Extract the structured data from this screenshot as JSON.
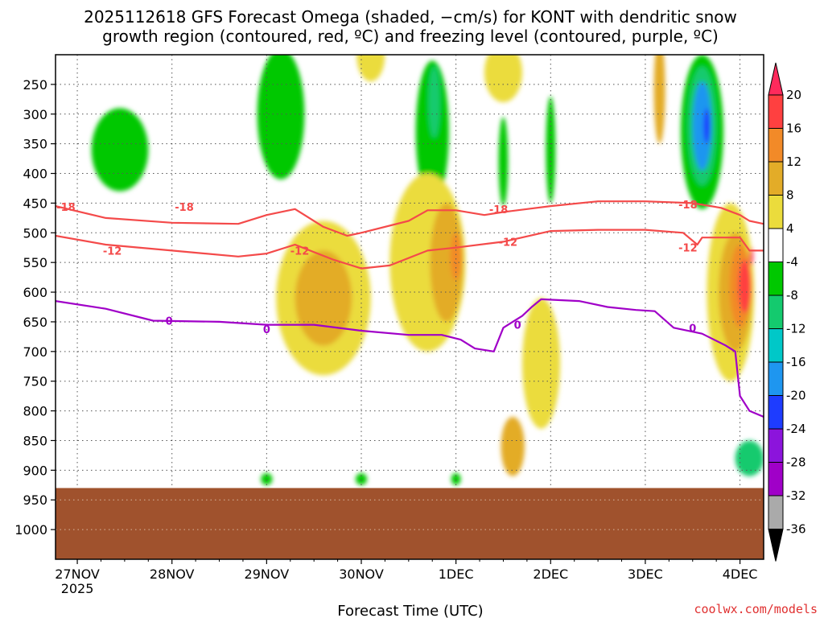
{
  "chart_data": {
    "type": "heatmap",
    "title_line1": "2025112618 GFS Forecast Omega (shaded, −cm/s) for KONT with dendritic snow",
    "title_line2": "growth region (contoured, red, ºC) and freezing level (contoured, purple, ºC)",
    "xlabel": "Forecast Time (UTC)",
    "ylabel": "",
    "credit": "coolwx.com/models",
    "x_ticks": [
      {
        "day": 0,
        "label": "27NOV",
        "sub": "2025"
      },
      {
        "day": 1,
        "label": "28NOV",
        "sub": ""
      },
      {
        "day": 2,
        "label": "29NOV",
        "sub": ""
      },
      {
        "day": 3,
        "label": "30NOV",
        "sub": ""
      },
      {
        "day": 4,
        "label": "1DEC",
        "sub": ""
      },
      {
        "day": 5,
        "label": "2DEC",
        "sub": ""
      },
      {
        "day": 6,
        "label": "3DEC",
        "sub": ""
      },
      {
        "day": 7,
        "label": "4DEC",
        "sub": ""
      }
    ],
    "xlim_days": [
      -0.23,
      7.25
    ],
    "y_ticks": [
      250,
      300,
      350,
      400,
      450,
      500,
      550,
      600,
      650,
      700,
      750,
      800,
      850,
      900,
      950,
      1000
    ],
    "ylim_hpa": [
      1050,
      200
    ],
    "surface_pressure_hpa": 930,
    "colorbar": {
      "levels": [
        20,
        16,
        12,
        8,
        4,
        -4,
        -8,
        -12,
        -16,
        -20,
        -24,
        -28,
        -32,
        -36
      ],
      "colors": [
        "#ff2a5c",
        "#ff4040",
        "#f28a28",
        "#e3ac28",
        "#ebdc3c",
        "#ffffff",
        "#00c800",
        "#14ca6e",
        "#00c8c8",
        "#1e96f0",
        "#1e3cff",
        "#8c14dc",
        "#a000c8",
        "#aaaaaa",
        "#000000"
      ]
    },
    "omega_fields": [
      {
        "value": -8,
        "color": "#00c800",
        "center": [
          2.15,
          300
        ],
        "width": 0.5,
        "height": 220
      },
      {
        "value": -8,
        "color": "#00c800",
        "center": [
          0.45,
          360
        ],
        "width": 0.6,
        "height": 140
      },
      {
        "value": -8,
        "color": "#00c800",
        "center": [
          3.75,
          330
        ],
        "width": 0.35,
        "height": 240
      },
      {
        "value": -12,
        "color": "#14ca6e",
        "center": [
          3.77,
          280
        ],
        "width": 0.12,
        "height": 120
      },
      {
        "value": -8,
        "color": "#00c800",
        "center": [
          5.0,
          360
        ],
        "width": 0.1,
        "height": 180
      },
      {
        "value": -8,
        "color": "#00c800",
        "center": [
          4.5,
          380
        ],
        "width": 0.1,
        "height": 150
      },
      {
        "value": -8,
        "color": "#00c800",
        "center": [
          6.6,
          330
        ],
        "width": 0.45,
        "height": 260
      },
      {
        "value": -12,
        "color": "#14ca6e",
        "center": [
          6.6,
          320
        ],
        "width": 0.3,
        "height": 200
      },
      {
        "value": -16,
        "color": "#1e96f0",
        "center": [
          6.6,
          320
        ],
        "width": 0.2,
        "height": 150
      },
      {
        "value": -20,
        "color": "#1e3cff",
        "center": [
          6.65,
          320
        ],
        "width": 0.07,
        "height": 60
      },
      {
        "value": 4,
        "color": "#ebdc3c",
        "center": [
          2.6,
          610
        ],
        "width": 1.0,
        "height": 260
      },
      {
        "value": 8,
        "color": "#e3ac28",
        "center": [
          2.6,
          610
        ],
        "width": 0.6,
        "height": 160
      },
      {
        "value": 4,
        "color": "#ebdc3c",
        "center": [
          3.7,
          550
        ],
        "width": 0.8,
        "height": 300
      },
      {
        "value": 8,
        "color": "#e3ac28",
        "center": [
          3.9,
          550
        ],
        "width": 0.35,
        "height": 200
      },
      {
        "value": 12,
        "color": "#f28a28",
        "center": [
          4.0,
          540
        ],
        "width": 0.12,
        "height": 80
      },
      {
        "value": 4,
        "color": "#ebdc3c",
        "center": [
          4.9,
          720
        ],
        "width": 0.4,
        "height": 220
      },
      {
        "value": 8,
        "color": "#e3ac28",
        "center": [
          4.6,
          860
        ],
        "width": 0.25,
        "height": 100
      },
      {
        "value": 4,
        "color": "#ebdc3c",
        "center": [
          6.9,
          600
        ],
        "width": 0.5,
        "height": 300
      },
      {
        "value": 8,
        "color": "#e3ac28",
        "center": [
          6.95,
          600
        ],
        "width": 0.35,
        "height": 200
      },
      {
        "value": 12,
        "color": "#f28a28",
        "center": [
          7.0,
          590
        ],
        "width": 0.22,
        "height": 140
      },
      {
        "value": 16,
        "color": "#ff4040",
        "center": [
          7.05,
          590
        ],
        "width": 0.14,
        "height": 90
      },
      {
        "value": 20,
        "color": "#ff2a5c",
        "center": [
          7.12,
          540
        ],
        "width": 0.04,
        "height": 30
      },
      {
        "value": 4,
        "color": "#ebdc3c",
        "center": [
          3.1,
          200
        ],
        "width": 0.3,
        "height": 90
      },
      {
        "value": 4,
        "color": "#ebdc3c",
        "center": [
          4.5,
          230
        ],
        "width": 0.4,
        "height": 100
      },
      {
        "value": 8,
        "color": "#e3ac28",
        "center": [
          6.15,
          260
        ],
        "width": 0.12,
        "height": 180
      },
      {
        "value": -8,
        "color": "#00c800",
        "center": [
          3.0,
          915
        ],
        "width": 0.12,
        "height": 20
      },
      {
        "value": -8,
        "color": "#00c800",
        "center": [
          4.0,
          915
        ],
        "width": 0.1,
        "height": 20
      },
      {
        "value": -8,
        "color": "#00c800",
        "center": [
          2.0,
          915
        ],
        "width": 0.12,
        "height": 20
      },
      {
        "value": -12,
        "color": "#14ca6e",
        "center": [
          7.1,
          880
        ],
        "width": 0.3,
        "height": 60
      }
    ],
    "series": [
      {
        "name": "-18 C isotherm",
        "label": "-18",
        "color": "#f44a4a",
        "label_at": [
          [
            -0.12,
            456
          ],
          [
            1.13,
            456
          ],
          [
            4.45,
            460
          ],
          [
            6.45,
            452
          ]
        ],
        "points": [
          [
            -0.23,
            455
          ],
          [
            0.3,
            475
          ],
          [
            1.0,
            483
          ],
          [
            1.7,
            485
          ],
          [
            2.0,
            470
          ],
          [
            2.3,
            460
          ],
          [
            2.6,
            490
          ],
          [
            2.85,
            505
          ],
          [
            3.0,
            500
          ],
          [
            3.5,
            480
          ],
          [
            3.7,
            462
          ],
          [
            4.0,
            462
          ],
          [
            4.3,
            470
          ],
          [
            4.5,
            465
          ],
          [
            5.0,
            455
          ],
          [
            5.5,
            447
          ],
          [
            6.0,
            447
          ],
          [
            6.5,
            450
          ],
          [
            6.8,
            458
          ],
          [
            7.0,
            470
          ],
          [
            7.1,
            480
          ],
          [
            7.25,
            485
          ]
        ]
      },
      {
        "name": "-12 C isotherm",
        "label": "-12",
        "color": "#f44a4a",
        "label_at": [
          [
            0.37,
            530
          ],
          [
            2.35,
            530
          ],
          [
            4.55,
            515
          ],
          [
            6.45,
            525
          ]
        ],
        "points": [
          [
            -0.23,
            505
          ],
          [
            0.3,
            520
          ],
          [
            1.0,
            530
          ],
          [
            1.7,
            540
          ],
          [
            2.0,
            535
          ],
          [
            2.3,
            520
          ],
          [
            2.7,
            545
          ],
          [
            3.0,
            560
          ],
          [
            3.3,
            555
          ],
          [
            3.7,
            530
          ],
          [
            4.0,
            525
          ],
          [
            4.5,
            515
          ],
          [
            5.0,
            497
          ],
          [
            5.5,
            495
          ],
          [
            6.0,
            495
          ],
          [
            6.4,
            500
          ],
          [
            6.55,
            520
          ],
          [
            6.6,
            508
          ],
          [
            7.0,
            508
          ],
          [
            7.1,
            530
          ],
          [
            7.25,
            530
          ]
        ]
      },
      {
        "name": "0 C freezing level",
        "label": "0",
        "color": "#a000c8",
        "label_at": [
          [
            0.97,
            648
          ],
          [
            2.0,
            662
          ],
          [
            4.65,
            655
          ],
          [
            6.5,
            660
          ]
        ],
        "points": [
          [
            -0.23,
            615
          ],
          [
            0.3,
            628
          ],
          [
            0.8,
            648
          ],
          [
            1.5,
            650
          ],
          [
            2.0,
            655
          ],
          [
            2.5,
            655
          ],
          [
            3.0,
            665
          ],
          [
            3.5,
            672
          ],
          [
            3.85,
            672
          ],
          [
            4.05,
            680
          ],
          [
            4.2,
            695
          ],
          [
            4.4,
            700
          ],
          [
            4.5,
            660
          ],
          [
            4.7,
            640
          ],
          [
            4.8,
            625
          ],
          [
            4.9,
            612
          ],
          [
            5.3,
            615
          ],
          [
            5.6,
            625
          ],
          [
            5.9,
            630
          ],
          [
            6.1,
            632
          ],
          [
            6.3,
            660
          ],
          [
            6.6,
            670
          ],
          [
            6.85,
            690
          ],
          [
            6.95,
            700
          ],
          [
            7.0,
            775
          ],
          [
            7.1,
            800
          ],
          [
            7.25,
            810
          ]
        ]
      }
    ]
  }
}
